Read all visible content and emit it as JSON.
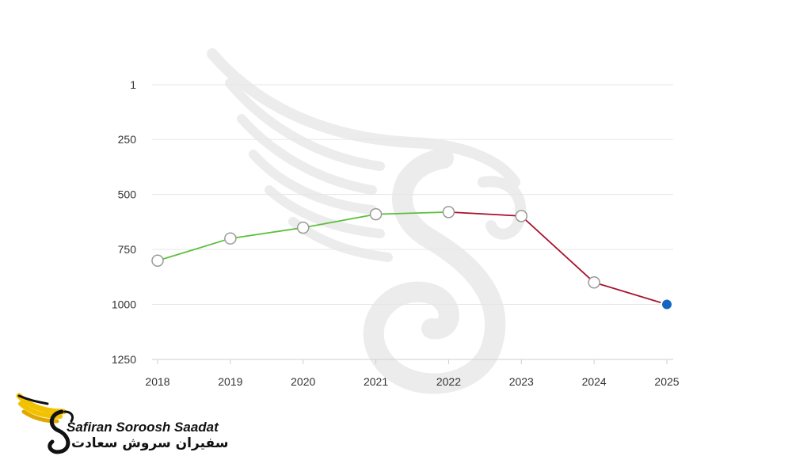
{
  "chart_data": {
    "type": "line",
    "title": "",
    "xlabel": "",
    "ylabel": "",
    "y_inverted": true,
    "ylim": [
      1,
      1250
    ],
    "y_ticks": [
      1,
      250,
      500,
      750,
      1000,
      1250
    ],
    "x": [
      "2018",
      "2019",
      "2020",
      "2021",
      "2022",
      "2023",
      "2024",
      "2025"
    ],
    "series": [
      {
        "color": "#5cbf3c",
        "x": [
          "2018",
          "2019",
          "2020",
          "2021",
          "2022"
        ],
        "values": [
          801,
          700,
          651,
          590,
          580
        ]
      },
      {
        "color": "#a8102e",
        "x": [
          "2022",
          "2023",
          "2024",
          "2025"
        ],
        "values": [
          580,
          598,
          900,
          1000
        ]
      }
    ],
    "highlight": {
      "x": "2025",
      "value": 1000,
      "color": "#1565c0"
    },
    "grid": true,
    "legend": "none"
  },
  "brand": {
    "name_en": "Safiran Soroosh Saadat",
    "name_fa": "سفیران سروش سعادت",
    "accent_color": "#f2c200"
  }
}
